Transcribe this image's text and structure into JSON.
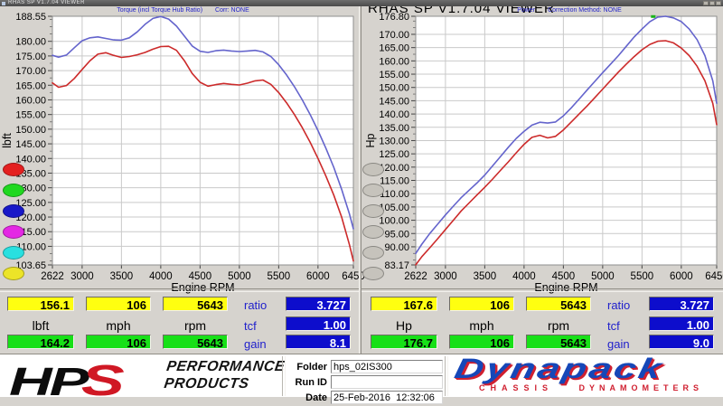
{
  "app": {
    "titlebar_text": "RHAS SP V1.7.04  VIEWER",
    "main_title": "RHAS SP V1.7.04  VIEWER"
  },
  "chart_data": [
    {
      "type": "line",
      "panel": "torque",
      "header": "Torque (incl Torque Hub Ratio)",
      "header_note": "Corr: NONE",
      "xlabel": "Engine RPM",
      "ylabel": "lbft",
      "ymin": 103.65,
      "ymax": 188.55,
      "ymin_label": "103.65",
      "ymax_label": "188.55",
      "y_major": [
        180,
        175,
        170,
        165,
        160,
        155,
        150,
        145,
        140,
        135,
        130,
        125,
        120,
        115,
        110
      ],
      "x_ticks": [
        {
          "rpm": 2622,
          "label": "2622",
          "grid": false
        },
        {
          "rpm": 3000,
          "label": "3000",
          "grid": true
        },
        {
          "rpm": 3500,
          "label": "3500",
          "grid": true
        },
        {
          "rpm": 4000,
          "label": "4000",
          "grid": true
        },
        {
          "rpm": 4500,
          "label": "4500",
          "grid": true
        },
        {
          "rpm": 5000,
          "label": "5000",
          "grid": true
        },
        {
          "rpm": 5500,
          "label": "5500",
          "grid": true
        },
        {
          "rpm": 6000,
          "label": "6000",
          "grid": true
        },
        {
          "rpm": 6450,
          "label": "6450",
          "grid": false
        }
      ],
      "series": [
        {
          "name": "torque-run-red",
          "color": "#cc2a2a",
          "points": [
            [
              2622,
              165.8
            ],
            [
              2700,
              164.3
            ],
            [
              2800,
              164.9
            ],
            [
              2900,
              167.3
            ],
            [
              3000,
              170.4
            ],
            [
              3100,
              173.4
            ],
            [
              3200,
              175.6
            ],
            [
              3300,
              176.1
            ],
            [
              3400,
              175.2
            ],
            [
              3500,
              174.5
            ],
            [
              3600,
              174.8
            ],
            [
              3700,
              175.4
            ],
            [
              3800,
              176.2
            ],
            [
              3900,
              177.3
            ],
            [
              4000,
              178.2
            ],
            [
              4100,
              178.3
            ],
            [
              4200,
              176.9
            ],
            [
              4300,
              173.4
            ],
            [
              4400,
              169.0
            ],
            [
              4500,
              166.0
            ],
            [
              4600,
              164.7
            ],
            [
              4700,
              165.2
            ],
            [
              4800,
              165.6
            ],
            [
              4900,
              165.3
            ],
            [
              5000,
              165.1
            ],
            [
              5100,
              165.7
            ],
            [
              5200,
              166.5
            ],
            [
              5300,
              166.8
            ],
            [
              5400,
              165.3
            ],
            [
              5500,
              162.5
            ],
            [
              5600,
              159.0
            ],
            [
              5700,
              155.0
            ],
            [
              5800,
              150.5
            ],
            [
              5900,
              145.5
            ],
            [
              6000,
              140.0
            ],
            [
              6100,
              134.0
            ],
            [
              6200,
              127.5
            ],
            [
              6300,
              120.0
            ],
            [
              6400,
              110.5
            ],
            [
              6450,
              105.0
            ]
          ]
        },
        {
          "name": "torque-run-blue",
          "color": "#6464cc",
          "points": [
            [
              2622,
              175.2
            ],
            [
              2700,
              174.6
            ],
            [
              2800,
              175.3
            ],
            [
              2900,
              177.8
            ],
            [
              3000,
              180.2
            ],
            [
              3100,
              181.2
            ],
            [
              3200,
              181.5
            ],
            [
              3300,
              181.0
            ],
            [
              3400,
              180.5
            ],
            [
              3500,
              180.4
            ],
            [
              3600,
              181.2
            ],
            [
              3700,
              183.2
            ],
            [
              3800,
              185.8
            ],
            [
              3900,
              187.8
            ],
            [
              4000,
              188.5
            ],
            [
              4100,
              187.6
            ],
            [
              4200,
              185.2
            ],
            [
              4300,
              181.8
            ],
            [
              4400,
              178.4
            ],
            [
              4500,
              176.6
            ],
            [
              4600,
              176.2
            ],
            [
              4700,
              176.8
            ],
            [
              4800,
              177.0
            ],
            [
              4900,
              176.7
            ],
            [
              5000,
              176.5
            ],
            [
              5100,
              176.7
            ],
            [
              5200,
              176.9
            ],
            [
              5300,
              176.4
            ],
            [
              5400,
              174.8
            ],
            [
              5500,
              172.0
            ],
            [
              5600,
              168.5
            ],
            [
              5700,
              164.5
            ],
            [
              5800,
              160.0
            ],
            [
              5900,
              155.0
            ],
            [
              6000,
              149.5
            ],
            [
              6100,
              143.5
            ],
            [
              6200,
              137.0
            ],
            [
              6300,
              129.5
            ],
            [
              6400,
              121.0
            ],
            [
              6450,
              116.0
            ]
          ]
        }
      ],
      "markers": []
    },
    {
      "type": "line",
      "panel": "power",
      "header": "Power",
      "header_note": "Correction Method: NONE",
      "xlabel": "Engine RPM",
      "ylabel": "Hp",
      "ymin": 83.17,
      "ymax": 176.8,
      "ymin_label": "83.17",
      "ymax_label": "176.80",
      "y_major": [
        170,
        165,
        160,
        155,
        150,
        145,
        140,
        135,
        130,
        125,
        120,
        115,
        110,
        105,
        100,
        95,
        90
      ],
      "x_ticks": [
        {
          "rpm": 2622,
          "label": "2622",
          "grid": false
        },
        {
          "rpm": 3000,
          "label": "3000",
          "grid": true
        },
        {
          "rpm": 3500,
          "label": "3500",
          "grid": true
        },
        {
          "rpm": 4000,
          "label": "4000",
          "grid": true
        },
        {
          "rpm": 4500,
          "label": "4500",
          "grid": true
        },
        {
          "rpm": 5000,
          "label": "5000",
          "grid": true
        },
        {
          "rpm": 5500,
          "label": "5500",
          "grid": true
        },
        {
          "rpm": 6000,
          "label": "6000",
          "grid": true
        },
        {
          "rpm": 6450,
          "label": "6450",
          "grid": false
        }
      ],
      "series": [
        {
          "name": "power-run-red",
          "color": "#cc2a2a",
          "points": [
            [
              2622,
              83.2
            ],
            [
              2700,
              86.3
            ],
            [
              2800,
              89.6
            ],
            [
              2900,
              93.0
            ],
            [
              3000,
              96.5
            ],
            [
              3100,
              100.0
            ],
            [
              3200,
              103.5
            ],
            [
              3300,
              106.5
            ],
            [
              3400,
              109.5
            ],
            [
              3500,
              112.4
            ],
            [
              3600,
              115.5
            ],
            [
              3700,
              118.8
            ],
            [
              3800,
              122.0
            ],
            [
              3900,
              125.4
            ],
            [
              4000,
              128.6
            ],
            [
              4100,
              131.2
            ],
            [
              4200,
              132.0
            ],
            [
              4300,
              131.0
            ],
            [
              4400,
              131.6
            ],
            [
              4500,
              134.0
            ],
            [
              4600,
              137.0
            ],
            [
              4700,
              140.0
            ],
            [
              4800,
              143.0
            ],
            [
              4900,
              146.2
            ],
            [
              5000,
              149.4
            ],
            [
              5100,
              152.6
            ],
            [
              5200,
              155.8
            ],
            [
              5300,
              158.8
            ],
            [
              5400,
              161.6
            ],
            [
              5500,
              164.2
            ],
            [
              5600,
              166.2
            ],
            [
              5700,
              167.4
            ],
            [
              5800,
              167.6
            ],
            [
              5900,
              166.8
            ],
            [
              6000,
              164.8
            ],
            [
              6100,
              162.0
            ],
            [
              6200,
              158.0
            ],
            [
              6300,
              152.5
            ],
            [
              6400,
              144.0
            ],
            [
              6450,
              136.0
            ]
          ]
        },
        {
          "name": "power-run-blue",
          "color": "#6464cc",
          "points": [
            [
              2622,
              87.5
            ],
            [
              2700,
              91.0
            ],
            [
              2800,
              95.0
            ],
            [
              2900,
              98.5
            ],
            [
              3000,
              102.0
            ],
            [
              3100,
              105.3
            ],
            [
              3200,
              108.5
            ],
            [
              3300,
              111.3
            ],
            [
              3400,
              114.0
            ],
            [
              3500,
              117.0
            ],
            [
              3600,
              120.5
            ],
            [
              3700,
              124.0
            ],
            [
              3800,
              127.5
            ],
            [
              3900,
              130.8
            ],
            [
              4000,
              133.5
            ],
            [
              4100,
              135.8
            ],
            [
              4200,
              136.9
            ],
            [
              4300,
              136.6
            ],
            [
              4400,
              137.0
            ],
            [
              4500,
              139.3
            ],
            [
              4600,
              142.3
            ],
            [
              4700,
              145.6
            ],
            [
              4800,
              149.0
            ],
            [
              4900,
              152.3
            ],
            [
              5000,
              155.6
            ],
            [
              5100,
              158.8
            ],
            [
              5200,
              162.0
            ],
            [
              5300,
              165.5
            ],
            [
              5400,
              169.0
            ],
            [
              5500,
              172.0
            ],
            [
              5600,
              174.8
            ],
            [
              5700,
              176.5
            ],
            [
              5800,
              176.8
            ],
            [
              5900,
              176.2
            ],
            [
              6000,
              174.8
            ],
            [
              6100,
              172.0
            ],
            [
              6200,
              168.0
            ],
            [
              6300,
              162.0
            ],
            [
              6400,
              152.5
            ],
            [
              6450,
              144.0
            ]
          ]
        }
      ],
      "markers": [
        {
          "rpm": 5643,
          "value": 176.7,
          "color": "#18b418"
        }
      ]
    }
  ],
  "run_buttons": {
    "left": [
      "#e42020",
      "#20d820",
      "#1818c8",
      "#e428e4",
      "#28e0e0",
      "#ece428"
    ],
    "right": [
      "#c6c3bc",
      "#c6c3bc",
      "#c6c3bc",
      "#c6c3bc",
      "#c6c3bc",
      "#c6c3bc"
    ]
  },
  "readouts": {
    "left": {
      "row1": [
        "156.1",
        "106",
        "5643"
      ],
      "units": [
        "lbft",
        "mph",
        "rpm"
      ],
      "row2": [
        "164.2",
        "106",
        "5643"
      ],
      "side_labels": [
        "ratio",
        "tcf",
        "gain"
      ],
      "side_values": [
        "3.727",
        "1.00",
        "8.1"
      ]
    },
    "right": {
      "row1": [
        "167.6",
        "106",
        "5643"
      ],
      "units": [
        "Hp",
        "mph",
        "rpm"
      ],
      "row2": [
        "176.7",
        "106",
        "5643"
      ],
      "side_labels": [
        "ratio",
        "tcf",
        "gain"
      ],
      "side_values": [
        "3.727",
        "1.00",
        "9.0"
      ]
    }
  },
  "footer": {
    "hps": {
      "hp": "HP",
      "s": "S",
      "line1": "PERFORMANCE",
      "line2": "PRODUCTS"
    },
    "form": {
      "folder_label": "Folder",
      "folder_value": "hps_02IS300",
      "runid_label": "Run ID",
      "runid_value": "",
      "date_label": "Date",
      "date_value": "25-Feb-2016  12:32:06"
    },
    "dynapack": {
      "word": "Dynapack",
      "sub_left": "CHASSIS",
      "sub_right": "DYNAMOMETERS"
    }
  }
}
